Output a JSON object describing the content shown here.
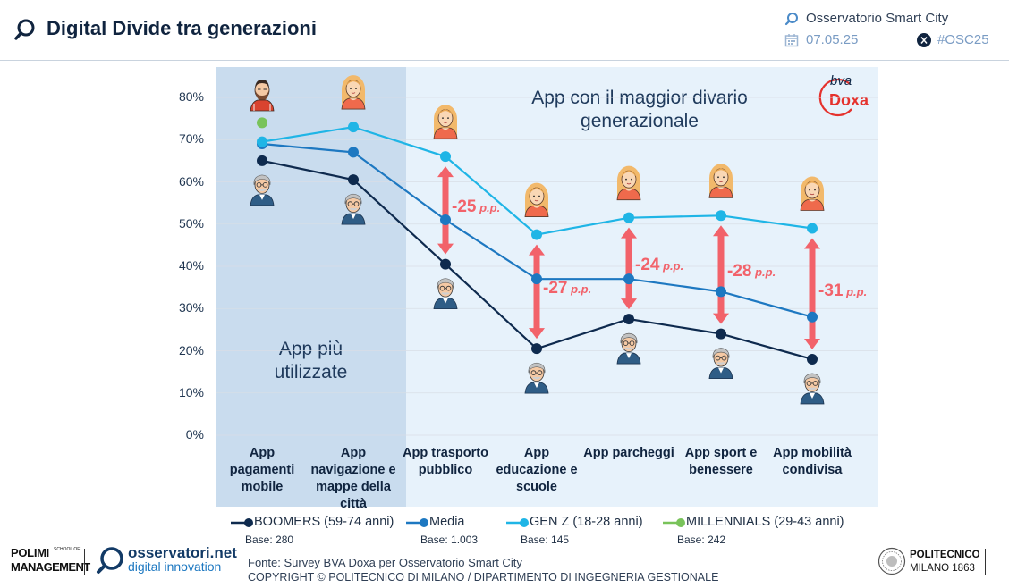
{
  "header": {
    "title": "Digital Divide tra generazioni",
    "org": "Osservatorio Smart City",
    "date": "07.05.25",
    "hashtag": "#OSC25"
  },
  "regions": {
    "most_used": "App più\nutilizzate",
    "largest_gap": "App con il maggior divario\ngenerazionale"
  },
  "chart_data": {
    "type": "line",
    "categories": [
      "App\npagamenti\nmobile",
      "App\nnavigazione e\nmappe della\ncittà",
      "App trasporto\npubblico",
      "App\neducazione e\nscuole",
      "App parcheggi",
      "App sport e\nbenessere",
      "App mobilità\ncondivisa"
    ],
    "ylim": [
      0,
      80
    ],
    "yticks": [
      "0%",
      "10%",
      "20%",
      "30%",
      "40%",
      "50%",
      "60%",
      "70%",
      "80%"
    ],
    "grid": true,
    "legend_position": "bottom",
    "series": [
      {
        "name": "BOOMERS (59-74 anni)",
        "base": "Base: 280",
        "color": "#0e2a4e",
        "values": [
          65,
          60.5,
          40.5,
          20.5,
          27.5,
          24,
          18
        ]
      },
      {
        "name": "Media",
        "base": "Base: 1.003",
        "color": "#1d78c1",
        "values": [
          69,
          67,
          51,
          37,
          37,
          34,
          28
        ]
      },
      {
        "name": "GEN Z (18-28 anni)",
        "base": "Base: 145",
        "color": "#1fb5e6",
        "values": [
          69.5,
          73,
          66,
          47.5,
          51.5,
          52,
          49
        ]
      },
      {
        "name": "MILLENNIALS (29-43 anni)",
        "base": "Base: 242",
        "color": "#79c35a",
        "values": [
          74,
          null,
          null,
          null,
          null,
          null,
          null
        ]
      }
    ],
    "gaps": [
      {
        "category_index": 2,
        "value": "-25",
        "unit": "p.p.",
        "from": 66,
        "to": 40.5
      },
      {
        "category_index": 3,
        "value": "-27",
        "unit": "p.p.",
        "from": 47.5,
        "to": 20.5
      },
      {
        "category_index": 4,
        "value": "-24",
        "unit": "p.p.",
        "from": 51.5,
        "to": 27.5
      },
      {
        "category_index": 5,
        "value": "-28",
        "unit": "p.p.",
        "from": 52,
        "to": 24
      },
      {
        "category_index": 6,
        "value": "-31",
        "unit": "p.p.",
        "from": 49,
        "to": 18
      }
    ],
    "gap_color": "#f2626a"
  },
  "logos": {
    "doxa_bva": "bva",
    "doxa_name": "Doxa",
    "polimi_1": "POLIMI",
    "polimi_school": "SCHOOL OF",
    "polimi_2": "MANAGEMENT",
    "osservatori_1": "osservatori.net",
    "osservatori_2": "digital innovation",
    "politecnico_1": "POLITECNICO",
    "politecnico_2": "MILANO 1863"
  },
  "footer": {
    "source": "Fonte: Survey BVA Doxa per Osservatorio Smart City",
    "copyright": "COPYRIGHT © POLITECNICO DI MILANO / DIPARTIMENTO DI INGEGNERIA GESTIONALE"
  },
  "icons": {
    "title": "magnifier-icon",
    "org": "magnifier-icon",
    "date": "calendar-icon",
    "hashtag": "x-logo-icon",
    "genz": "young-woman-icon",
    "millennial": "bearded-man-icon",
    "boomer": "older-man-icon"
  }
}
